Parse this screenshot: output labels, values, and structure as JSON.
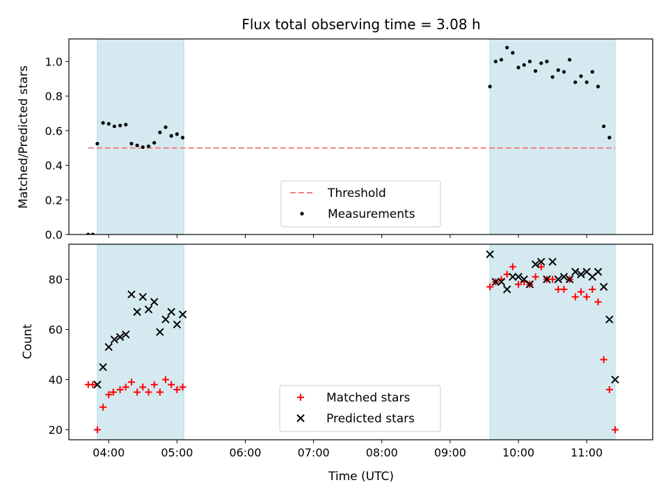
{
  "chart_data": [
    {
      "type": "scatter",
      "title": "Flux total observing time = 3.08 h",
      "ylabel": "Matched/Predicted stars",
      "xlabel": "",
      "xlim": [
        "03:25",
        "11:58"
      ],
      "ylim": [
        0,
        1.13
      ],
      "yticks": [
        0.0,
        0.2,
        0.4,
        0.6,
        0.8,
        1.0
      ],
      "ytick_labels": [
        "0.0",
        "0.2",
        "0.4",
        "0.6",
        "0.8",
        "1.0"
      ],
      "xticks": [
        "04:00",
        "05:00",
        "06:00",
        "07:00",
        "08:00",
        "09:00",
        "10:00",
        "11:00"
      ],
      "shaded_intervals": [
        [
          "03:50",
          "05:06"
        ],
        [
          "09:35",
          "11:25"
        ]
      ],
      "shade_color": "#d4eaf0",
      "threshold": {
        "name": "Threshold",
        "value": 0.5,
        "color": "#f08080",
        "style": "dashed"
      },
      "series": [
        {
          "name": "Measurements",
          "color": "#000000",
          "marker": "dot",
          "x": [
            "03:42",
            "03:46",
            "03:50",
            "03:55",
            "04:00",
            "04:05",
            "04:10",
            "04:15",
            "04:20",
            "04:25",
            "04:30",
            "04:35",
            "04:40",
            "04:45",
            "04:50",
            "04:55",
            "05:00",
            "05:05",
            "09:35",
            "09:40",
            "09:45",
            "09:50",
            "09:55",
            "10:00",
            "10:05",
            "10:10",
            "10:15",
            "10:20",
            "10:25",
            "10:30",
            "10:35",
            "10:40",
            "10:45",
            "10:50",
            "10:55",
            "11:00",
            "11:05",
            "11:10",
            "11:15",
            "11:20"
          ],
          "y": [
            0.0,
            0.0,
            0.525,
            0.645,
            0.64,
            0.625,
            0.63,
            0.635,
            0.525,
            0.515,
            0.505,
            0.51,
            0.53,
            0.59,
            0.62,
            0.57,
            0.58,
            0.56,
            0.855,
            1.0,
            1.01,
            1.08,
            1.05,
            0.965,
            0.98,
            1.0,
            0.945,
            0.99,
            1.0,
            0.91,
            0.95,
            0.94,
            1.01,
            0.88,
            0.915,
            0.88,
            0.94,
            0.855,
            0.625,
            0.56
          ]
        }
      ],
      "legend": {
        "position": "lower-center",
        "entries": [
          "Threshold",
          "Measurements"
        ]
      }
    },
    {
      "type": "scatter",
      "title": "",
      "xlabel": "Time (UTC)",
      "ylabel": "Count",
      "xlim": [
        "03:25",
        "11:58"
      ],
      "ylim": [
        16,
        94
      ],
      "yticks": [
        20,
        40,
        60,
        80
      ],
      "ytick_labels": [
        "20",
        "40",
        "60",
        "80"
      ],
      "xticks": [
        "04:00",
        "05:00",
        "06:00",
        "07:00",
        "08:00",
        "09:00",
        "10:00",
        "11:00"
      ],
      "xtick_labels": [
        "04:00",
        "05:00",
        "06:00",
        "07:00",
        "08:00",
        "09:00",
        "10:00",
        "11:00"
      ],
      "shaded_intervals": [
        [
          "03:50",
          "05:06"
        ],
        [
          "09:35",
          "11:25"
        ]
      ],
      "shade_color": "#d4eaf0",
      "series": [
        {
          "name": "Matched stars",
          "color": "#ff0000",
          "marker": "plus",
          "x": [
            "03:42",
            "03:46",
            "03:50",
            "03:55",
            "04:00",
            "04:04",
            "04:10",
            "04:15",
            "04:20",
            "04:25",
            "04:30",
            "04:35",
            "04:40",
            "04:45",
            "04:50",
            "04:55",
            "05:00",
            "05:05",
            "09:35",
            "09:40",
            "09:45",
            "09:50",
            "09:55",
            "10:00",
            "10:05",
            "10:10",
            "10:15",
            "10:20",
            "10:25",
            "10:30",
            "10:35",
            "10:40",
            "10:45",
            "10:50",
            "10:55",
            "11:00",
            "11:05",
            "11:10",
            "11:15",
            "11:20",
            "11:25"
          ],
          "y": [
            38,
            38,
            20,
            29,
            34,
            35,
            36,
            37,
            39,
            35,
            37,
            35,
            38,
            35,
            40,
            38,
            36,
            37,
            77,
            79,
            80,
            82,
            85,
            78,
            79,
            78,
            81,
            85,
            80,
            80,
            76,
            76,
            80,
            73,
            75,
            73,
            76,
            71,
            48,
            36,
            20
          ]
        },
        {
          "name": "Predicted stars",
          "color": "#000000",
          "marker": "x",
          "x": [
            "03:50",
            "03:55",
            "04:00",
            "04:05",
            "04:10",
            "04:15",
            "04:20",
            "04:25",
            "04:30",
            "04:35",
            "04:40",
            "04:45",
            "04:50",
            "04:55",
            "05:00",
            "05:05",
            "09:35",
            "09:40",
            "09:45",
            "09:50",
            "09:55",
            "10:00",
            "10:05",
            "10:10",
            "10:15",
            "10:20",
            "10:25",
            "10:30",
            "10:35",
            "10:40",
            "10:45",
            "10:50",
            "10:55",
            "11:00",
            "11:05",
            "11:10",
            "11:15",
            "11:20",
            "11:25"
          ],
          "y": [
            38,
            45,
            53,
            56,
            57,
            58,
            74,
            67,
            73,
            68,
            71,
            59,
            64,
            67,
            62,
            66,
            90,
            79,
            79,
            76,
            81,
            81,
            80,
            78,
            86,
            87,
            80,
            87,
            80,
            81,
            80,
            83,
            82,
            83,
            81,
            83,
            77,
            64,
            40
          ]
        }
      ],
      "legend": {
        "position": "lower-center",
        "entries": [
          "Matched stars",
          "Predicted stars"
        ]
      }
    }
  ]
}
